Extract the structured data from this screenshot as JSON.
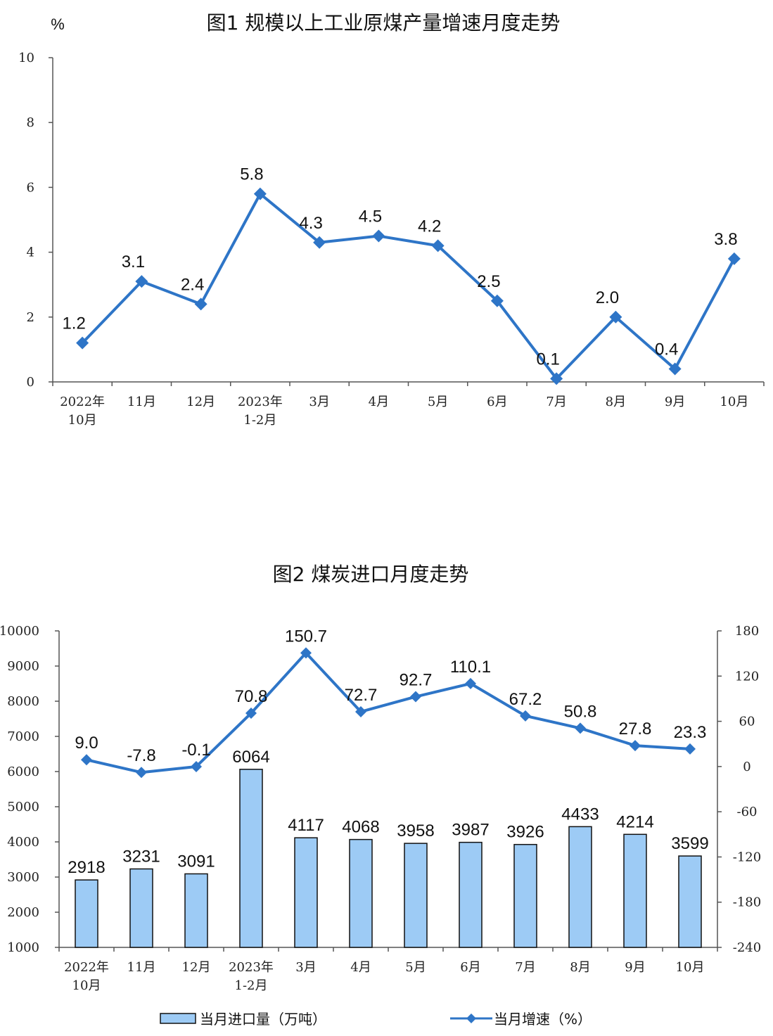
{
  "chart_data": [
    {
      "type": "line",
      "title": "图1  规模以上工业原煤产量增速月度走势",
      "ylabel": "%",
      "ylim": [
        0,
        10
      ],
      "yticks": [
        "0",
        "2",
        "4",
        "6",
        "8",
        "10"
      ],
      "categories": [
        [
          "2022年",
          "10月"
        ],
        [
          "11月"
        ],
        [
          "12月"
        ],
        [
          "2023年",
          "1-2月"
        ],
        [
          "3月"
        ],
        [
          "4月"
        ],
        [
          "5月"
        ],
        [
          "6月"
        ],
        [
          "7月"
        ],
        [
          "8月"
        ],
        [
          "9月"
        ],
        [
          "10月"
        ]
      ],
      "series": [
        {
          "values": [
            1.2,
            3.1,
            2.4,
            5.8,
            4.3,
            4.5,
            4.2,
            2.5,
            0.1,
            2.0,
            0.4,
            3.8
          ],
          "labels": [
            "1.2",
            "3.1",
            "2.4",
            "5.8",
            "4.3",
            "4.5",
            "4.2",
            "2.5",
            "0.1",
            "2.0",
            "0.4",
            "3.8"
          ],
          "color": "#2e75c7"
        }
      ],
      "grid": false
    },
    {
      "type": "bar+line",
      "title": "图2  煤炭进口月度走势",
      "ylim": [
        1000,
        10000
      ],
      "yticks": [
        "1000",
        "2000",
        "3000",
        "4000",
        "5000",
        "6000",
        "7000",
        "8000",
        "9000",
        "10000"
      ],
      "y2lim": [
        -240,
        180
      ],
      "y2ticks": [
        "-240",
        "-180",
        "-120",
        "-60",
        "0",
        "60",
        "120",
        "180"
      ],
      "categories": [
        [
          "2022年",
          "10月"
        ],
        [
          "11月"
        ],
        [
          "12月"
        ],
        [
          "2023年",
          "1-2月"
        ],
        [
          "3月"
        ],
        [
          "4月"
        ],
        [
          "5月"
        ],
        [
          "6月"
        ],
        [
          "7月"
        ],
        [
          "8月"
        ],
        [
          "9月"
        ],
        [
          "10月"
        ]
      ],
      "series": [
        {
          "name": "当月进口量（万吨）",
          "type": "bar",
          "axis": "left",
          "values": [
            2918,
            3231,
            3091,
            6064,
            4117,
            4068,
            3958,
            3987,
            3926,
            4433,
            4214,
            3599
          ],
          "labels": [
            "2918",
            "3231",
            "3091",
            "6064",
            "4117",
            "4068",
            "3958",
            "3987",
            "3926",
            "4433",
            "4214",
            "3599"
          ],
          "color": "#9dcbf5"
        },
        {
          "name": "当月增速（%）",
          "type": "line",
          "axis": "right",
          "values": [
            9.0,
            -7.8,
            -0.1,
            70.8,
            150.7,
            72.7,
            92.7,
            110.1,
            67.2,
            50.8,
            27.8,
            23.3
          ],
          "labels": [
            "9.0",
            "-7.8",
            "-0.1",
            "70.8",
            "150.7",
            "72.7",
            "92.7",
            "110.1",
            "67.2",
            "50.8",
            "27.8",
            "23.3"
          ],
          "color": "#2e75c7"
        }
      ],
      "legend": "bottom",
      "grid": false
    }
  ]
}
